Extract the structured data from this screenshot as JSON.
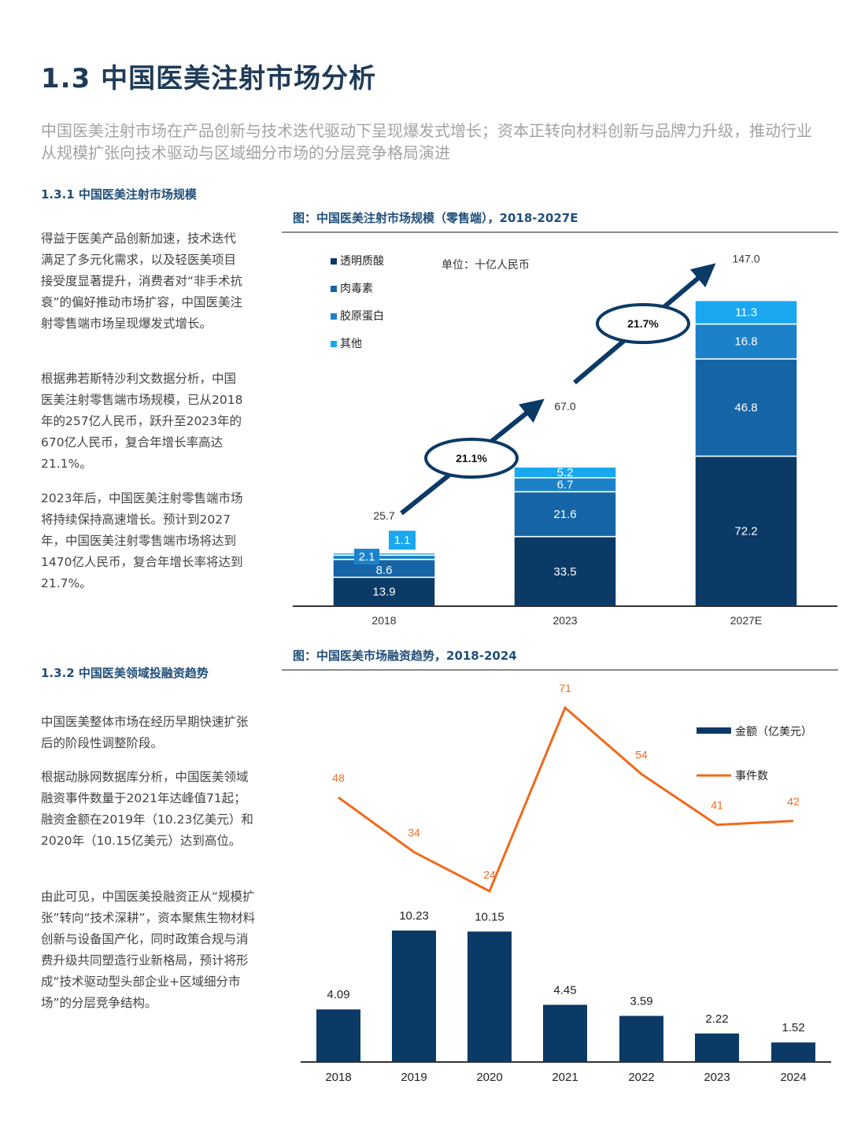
{
  "title": "1.3 中国医美注射市场分析",
  "lead": "中国医美注射市场在产品创新与技术迭代驱动下呈现爆发式增长；资本正转向材料创新与品牌力升级，推动行业从规模扩张向技术驱动与区域细分市场的分层竞争格局演进",
  "section1": {
    "heading": "1.3.1 中国医美注射市场规模",
    "p1": "得益于医美产品创新加速，技术迭代满足了多元化需求，以及轻医美项目接受度显著提升，消费者对“非手术抗衰”的偏好推动市场扩容，中国医美注射零售端市场呈现爆发式增长。",
    "p2": "根据弗若斯特沙利文数据分析，中国医美注射零售端市场规模，已从2018年的257亿人民币，跃升至2023年的670亿人民币，复合年增长率高达21.1%。",
    "p3": "2023年后，中国医美注射零售端市场将持续保持高速增长。预计到2027年，中国医美注射零售端市场将达到1470亿人民币，复合年增长率将达到21.7%。"
  },
  "section2": {
    "heading": "1.3.2 中国医美领域投融资趋势",
    "p1": "中国医美整体市场在经历早期快速扩张后的阶段性调整阶段。",
    "p2": "根据动脉网数据库分析，中国医美领域融资事件数量于2021年达峰值71起；融资金额在2019年（10.23亿美元）和2020年（10.15亿美元）达到高位。",
    "p3": "由此可见，中国医美投融资正从“规模扩张”转向“技术深耕”，资本聚焦生物材料创新与设备国产化，同时政策合规与消费升级共同塑造行业新格局，预计将形成“技术驱动型头部企业+区域细分市场”的分层竞争结构。"
  },
  "chart_data": [
    {
      "type": "bar",
      "stacked": true,
      "title": "图：中国医美注射市场规模（零售端），2018-2027E",
      "unit_label": "单位：十亿人民币",
      "categories": [
        "2018",
        "2023",
        "2027E"
      ],
      "series": [
        {
          "name": "透明质酸",
          "values": [
            13.9,
            33.5,
            72.2
          ],
          "color": "#0b3a66"
        },
        {
          "name": "肉毒素",
          "values": [
            8.6,
            21.6,
            46.8
          ],
          "color": "#1565a6"
        },
        {
          "name": "胶原蛋白",
          "values": [
            2.1,
            6.7,
            16.8
          ],
          "color": "#1b82c9"
        },
        {
          "name": "其他",
          "values": [
            1.1,
            5.2,
            11.3
          ],
          "color": "#19a7ef"
        }
      ],
      "totals": [
        25.7,
        67.0,
        147.0
      ],
      "total_labels": [
        "25.7",
        "67.0",
        "147.0"
      ],
      "cagr_labels": [
        "21.1%",
        "21.7%"
      ],
      "ylim": [
        0,
        150
      ]
    },
    {
      "type": "bar+line",
      "title": "图：中国医美市场融资趋势，2018-2024",
      "categories": [
        "2018",
        "2019",
        "2020",
        "2021",
        "2022",
        "2023",
        "2024"
      ],
      "series": [
        {
          "name": "金额（亿美元）",
          "type": "bar",
          "values": [
            4.09,
            10.23,
            10.15,
            4.45,
            3.59,
            2.22,
            1.52
          ],
          "labels": [
            "4.09",
            "10.23",
            "10.15",
            "4.45",
            "3.59",
            "2.22",
            "1.52"
          ],
          "color": "#0b3a66"
        },
        {
          "name": "事件数",
          "type": "line",
          "values": [
            48,
            34,
            24,
            71,
            54,
            41,
            42
          ],
          "color": "#f06a1c"
        }
      ],
      "legend_position": "top-right"
    }
  ]
}
